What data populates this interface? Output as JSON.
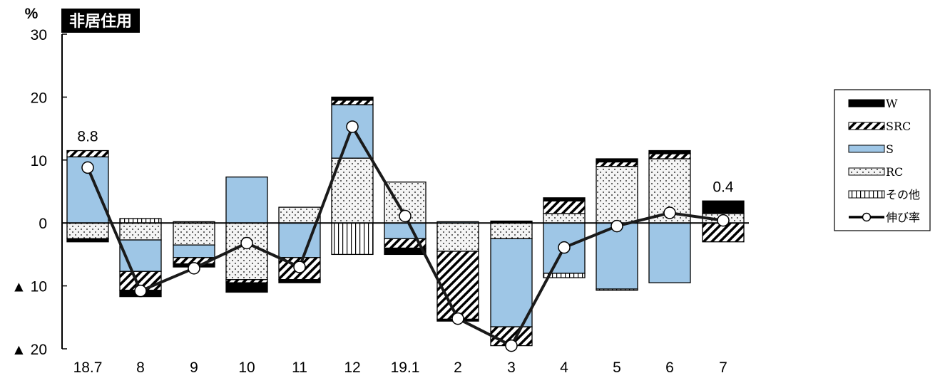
{
  "chart_data": {
    "type": "bar",
    "stacked": true,
    "title": "非居住用",
    "ylabel": "%",
    "ylim": [
      -20,
      30
    ],
    "yticks": [
      30,
      20,
      10,
      0,
      -10,
      -20
    ],
    "ytick_labels": [
      "30",
      "20",
      "10",
      "0",
      "▲ 10",
      "▲ 20"
    ],
    "categories": [
      "18.7",
      "8",
      "9",
      "10",
      "11",
      "12",
      "19.1",
      "2",
      "3",
      "4",
      "5",
      "6",
      "7"
    ],
    "series": [
      {
        "name": "W",
        "values": [
          -0.5,
          -1.0,
          -0.5,
          -1.5,
          -0.5,
          0.5,
          -1.0,
          -0.3,
          0.3,
          0.5,
          0.5,
          0.5,
          2.0
        ]
      },
      {
        "name": "SRC",
        "values": [
          1.0,
          -3.0,
          -1.0,
          -0.5,
          -3.5,
          0.7,
          -1.5,
          -10.8,
          -3.0,
          2.0,
          0.7,
          0.8,
          -3.0
        ]
      },
      {
        "name": "S",
        "values": [
          10.5,
          -5.0,
          -2.0,
          7.3,
          -5.5,
          8.5,
          -2.5,
          0.2,
          -14.0,
          -8.0,
          -10.5,
          -9.5,
          0.0
        ]
      },
      {
        "name": "RC",
        "values": [
          -2.5,
          -2.7,
          -3.5,
          -9.0,
          2.5,
          10.3,
          6.5,
          -4.5,
          -2.5,
          1.5,
          9.0,
          10.2,
          1.5
        ]
      },
      {
        "name": "その他",
        "values": [
          0.0,
          0.7,
          0.2,
          0.0,
          0.0,
          -5.0,
          0.0,
          0.0,
          0.0,
          -0.7,
          -0.2,
          0.0,
          0.0
        ]
      }
    ],
    "line": {
      "name": "伸び率",
      "values": [
        8.8,
        -10.8,
        -7.2,
        -3.2,
        -7.0,
        15.3,
        1.1,
        -15.2,
        -19.5,
        -3.9,
        -0.5,
        1.6,
        0.4
      ]
    },
    "annotations": [
      {
        "category": "18.7",
        "text": "8.8"
      },
      {
        "category": "7",
        "text": "0.4"
      }
    ],
    "legend_position": "right",
    "grid": false
  },
  "style": {
    "W": "#000000",
    "S": "#9ec6e6",
    "RC": "#f4f4f4",
    "line": "#1a1a1a"
  }
}
